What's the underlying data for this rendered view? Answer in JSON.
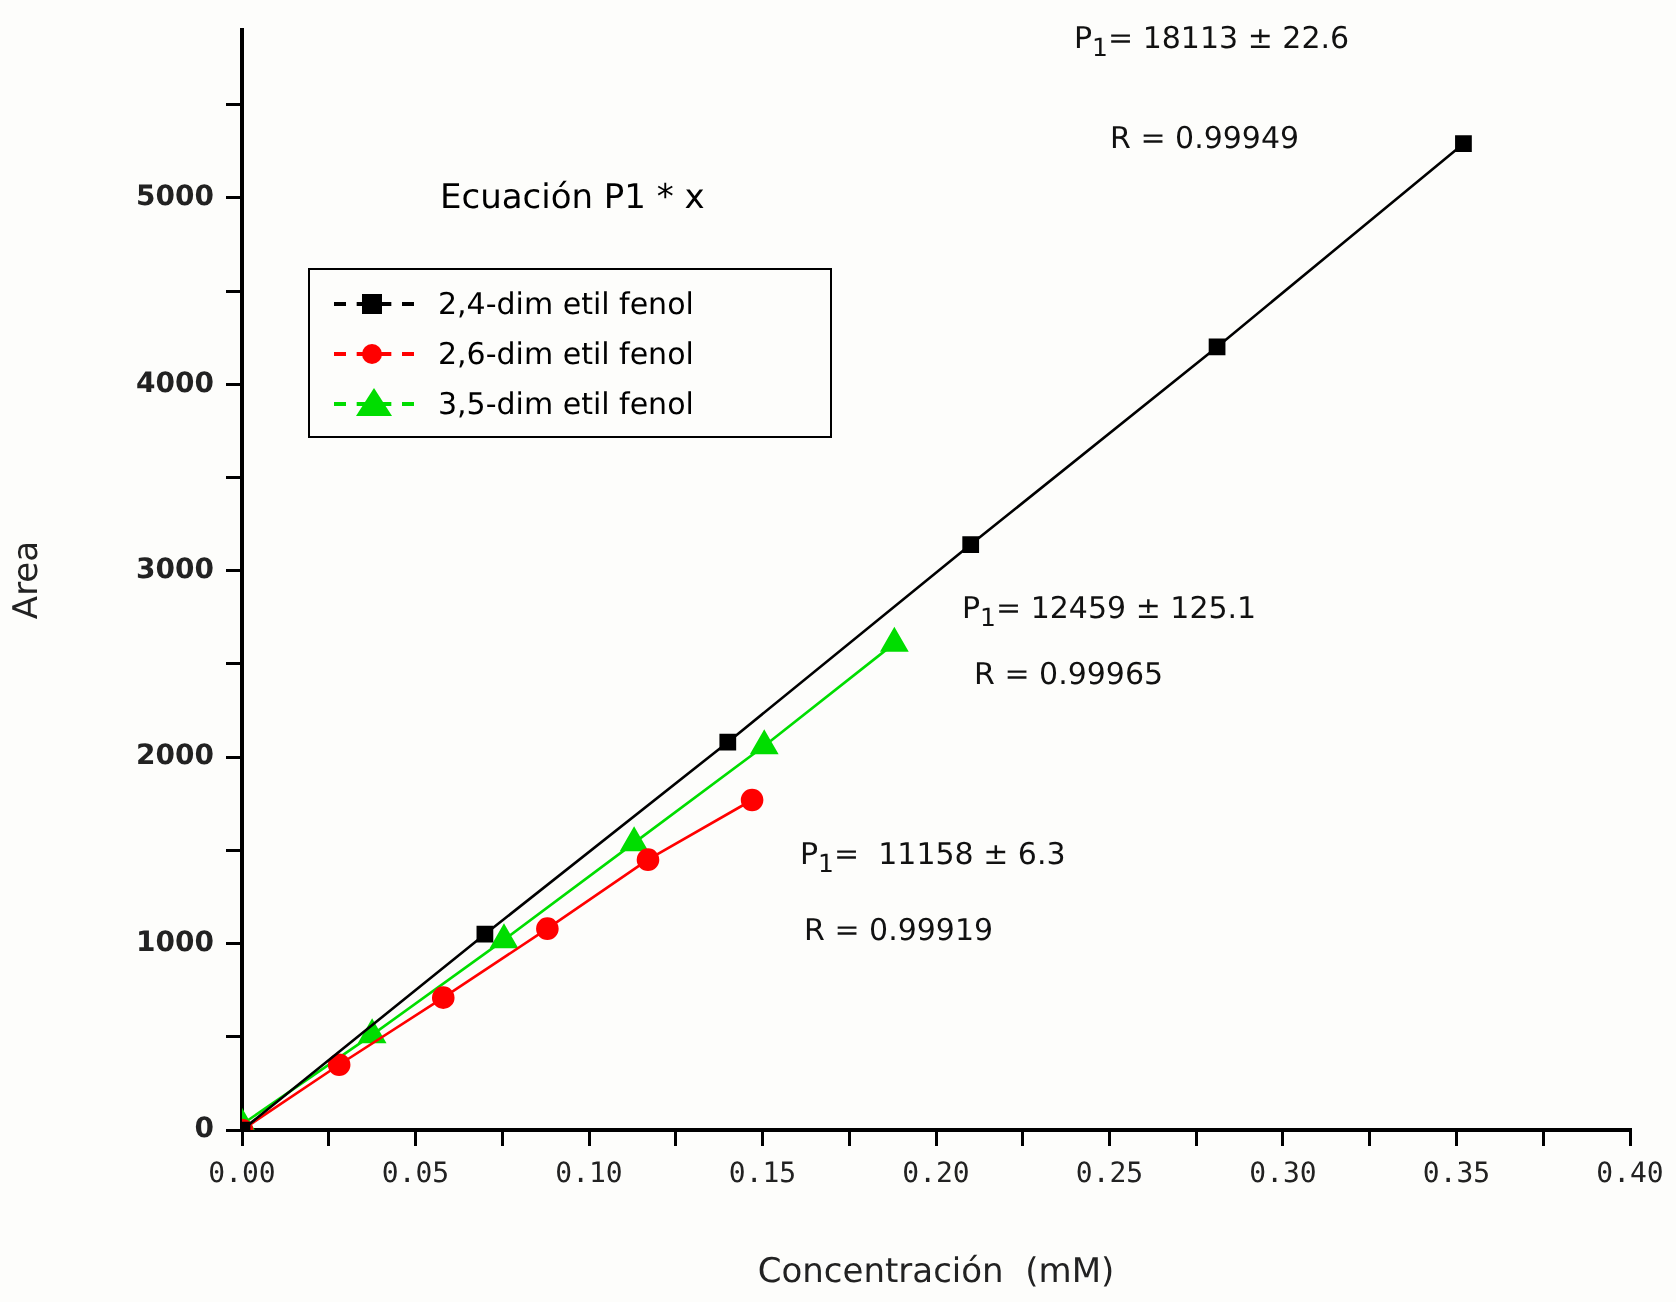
{
  "chart_data": {
    "type": "line",
    "xlabel": "Concentración  (mM)",
    "ylabel": "Area",
    "legend_title": "Ecuación P1 * x",
    "legend": "top left",
    "grid": false,
    "line_style": "solid",
    "xlim": [
      0,
      0.4
    ],
    "ylim": [
      0,
      5900
    ],
    "xticks": [
      {
        "value": 0,
        "label": "0.00"
      },
      {
        "value": 0.025,
        "label": null
      },
      {
        "value": 0.05,
        "label": "0.05"
      },
      {
        "value": 0.075,
        "label": null
      },
      {
        "value": 0.1,
        "label": "0.10"
      },
      {
        "value": 0.125,
        "label": null
      },
      {
        "value": 0.15,
        "label": "0.15"
      },
      {
        "value": 0.175,
        "label": null
      },
      {
        "value": 0.2,
        "label": "0.20"
      },
      {
        "value": 0.225,
        "label": null
      },
      {
        "value": 0.25,
        "label": "0.25"
      },
      {
        "value": 0.275,
        "label": null
      },
      {
        "value": 0.3,
        "label": "0.30"
      },
      {
        "value": 0.325,
        "label": null
      },
      {
        "value": 0.35,
        "label": "0.35"
      },
      {
        "value": 0.375,
        "label": null
      },
      {
        "value": 0.4,
        "label": "0.40"
      }
    ],
    "yticks": [
      0,
      {
        "value": 500,
        "label": null
      },
      1000,
      {
        "value": 1500,
        "label": null
      },
      2000,
      {
        "value": 2500,
        "label": null
      },
      3000,
      {
        "value": 3500,
        "label": null
      },
      4000,
      {
        "value": 4500,
        "label": null
      },
      5000,
      {
        "value": 5500,
        "label": null
      }
    ],
    "series": [
      {
        "name": "2,4-dim etil fenol",
        "color": "#000000",
        "marker": "square",
        "x": [
          0,
          0.07,
          0.14,
          0.21,
          0.281,
          0.352
        ],
        "values": [
          0,
          1050,
          2080,
          3140,
          4200,
          5290
        ]
      },
      {
        "name": "2,6-dim etil fenol",
        "color": "#ff0000",
        "marker": "circle",
        "x": [
          0,
          0.028,
          0.058,
          0.088,
          0.117,
          0.147
        ],
        "values": [
          0,
          350,
          710,
          1080,
          1450,
          1770
        ]
      },
      {
        "name": "3,5-dim etil fenol",
        "color": "#00dd00",
        "marker": "triangle",
        "x": [
          0,
          0.0375,
          0.0755,
          0.113,
          0.1505,
          0.188
        ],
        "values": [
          30,
          510,
          1020,
          1540,
          2060,
          2610
        ]
      }
    ],
    "annotations": [
      "P$_{1}$= 18113 ± 22.6",
      "R = 0.99949",
      "P$_{1}$= 12459 ± 125.1",
      "R = 0.99965",
      "P$_{1}$=  11158 ± 6.3",
      "R = 0.99919"
    ]
  }
}
